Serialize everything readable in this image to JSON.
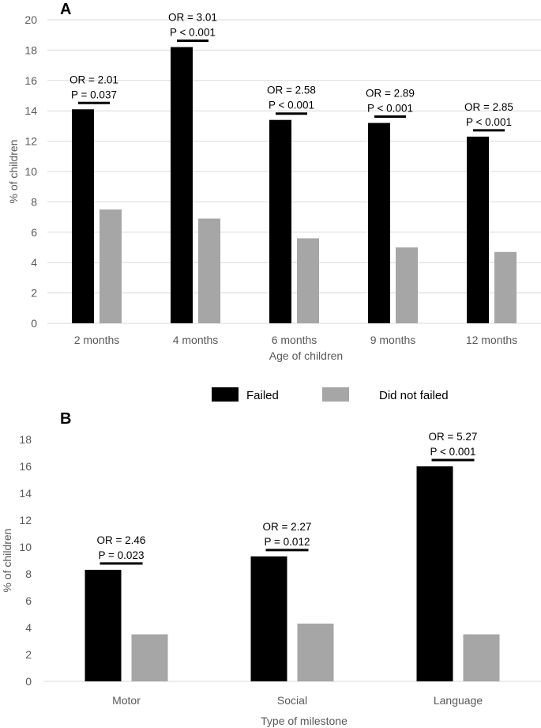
{
  "legend": {
    "failed_label": "Failed",
    "not_failed_label": "Did not failed",
    "failed_color": "#000000",
    "not_failed_color": "#a6a6a6"
  },
  "chart_data": [
    {
      "panel": "A",
      "type": "bar",
      "xlabel": "Age of children",
      "ylabel": "% of children",
      "ylim": [
        0,
        20
      ],
      "yticks": [
        0,
        2,
        4,
        6,
        8,
        10,
        12,
        14,
        16,
        18,
        20
      ],
      "grid": true,
      "categories": [
        "2 months",
        "4 months",
        "6 months",
        "9 months",
        "12 months"
      ],
      "series": [
        {
          "name": "Failed",
          "values": [
            14.1,
            18.2,
            13.4,
            13.2,
            12.3
          ]
        },
        {
          "name": "Did not failed",
          "values": [
            7.5,
            6.9,
            5.6,
            5.0,
            4.7
          ]
        }
      ],
      "annotations": [
        {
          "or": "OR = 2.01",
          "p": "P = 0.037"
        },
        {
          "or": "OR = 3.01",
          "p": "P < 0.001"
        },
        {
          "or": "OR = 2.58",
          "p": "P < 0.001"
        },
        {
          "or": "OR = 2.89",
          "p": "P < 0.001"
        },
        {
          "or": "OR = 2.85",
          "p": "P < 0.001"
        }
      ]
    },
    {
      "panel": "B",
      "type": "bar",
      "xlabel": "Type of milestone",
      "ylabel": "% of children",
      "ylim": [
        0,
        18
      ],
      "yticks": [
        0,
        2,
        4,
        6,
        8,
        10,
        12,
        14,
        16,
        18
      ],
      "grid": false,
      "categories": [
        "Motor",
        "Social",
        "Language"
      ],
      "series": [
        {
          "name": "Failed",
          "values": [
            8.3,
            9.3,
            16.0
          ]
        },
        {
          "name": "Did not failed",
          "values": [
            3.5,
            4.3,
            3.5
          ]
        }
      ],
      "annotations": [
        {
          "or": "OR = 2.46",
          "p": "P = 0.023"
        },
        {
          "or": "OR = 2.27",
          "p": "P = 0.012"
        },
        {
          "or": "OR = 5.27",
          "p": "P < 0.001"
        }
      ]
    }
  ]
}
